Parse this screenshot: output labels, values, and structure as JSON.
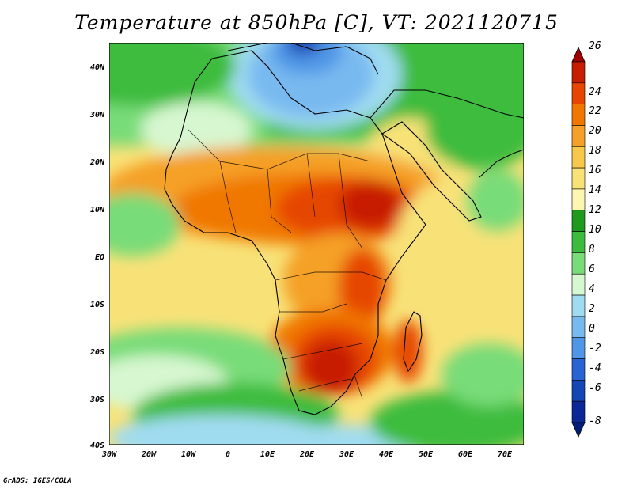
{
  "title": "Temperature at 850hPa [C], VT: 2021120715",
  "credit": "GrADS: IGES/COLA",
  "axes": {
    "lat_labels": [
      "40N",
      "30N",
      "20N",
      "10N",
      "EQ",
      "10S",
      "20S",
      "30S",
      "40S"
    ],
    "lon_labels": [
      "30W",
      "20W",
      "10W",
      "0",
      "10E",
      "20E",
      "30E",
      "40E",
      "50E",
      "60E",
      "70E"
    ]
  },
  "colorbar": {
    "labels": [
      "26",
      "24",
      "22",
      "20",
      "18",
      "16",
      "14",
      "12",
      "10",
      "8",
      "6",
      "4",
      "2",
      "0",
      "-2",
      "-4",
      "-6",
      "-8"
    ],
    "colors": [
      "#a00000",
      "#c81e00",
      "#e64600",
      "#f07800",
      "#f5a028",
      "#f7c84a",
      "#f8e278",
      "#fbf7b0",
      "#1e9b1e",
      "#3cbc3c",
      "#78dc78",
      "#d7f7d0",
      "#a0dcf0",
      "#78b9f0",
      "#5096e6",
      "#2864d2",
      "#1446b4",
      "#0a2896",
      "#001e78"
    ]
  }
}
